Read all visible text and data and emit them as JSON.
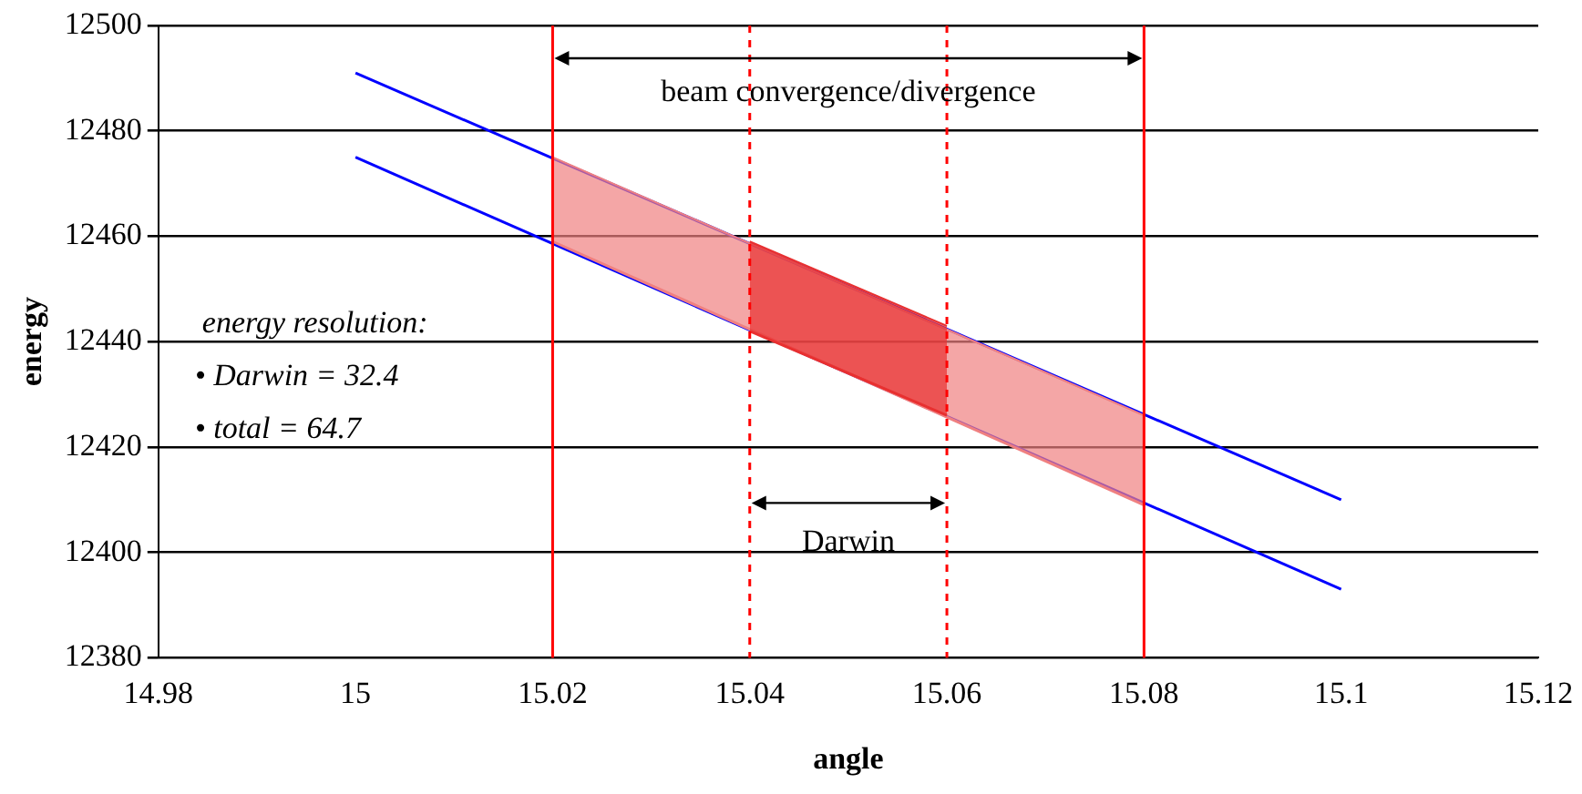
{
  "chart_data": {
    "type": "line",
    "xlabel": "angle",
    "ylabel": "energy",
    "xlim": [
      14.98,
      15.12
    ],
    "xticks": [
      14.98,
      15,
      15.02,
      15.04,
      15.06,
      15.08,
      15.1,
      15.12
    ],
    "ylim": [
      12380,
      12500
    ],
    "yticks": [
      12380,
      12400,
      12420,
      12440,
      12460,
      12480,
      12500
    ],
    "grid": "y",
    "legend": false,
    "marker": "none",
    "series": [
      {
        "type": "line",
        "color": "#0000ff",
        "x": [
          15,
          15.1
        ],
        "values": [
          12491,
          12410
        ]
      },
      {
        "type": "line",
        "color": "#0000ff",
        "x": [
          15,
          15.1
        ],
        "values": [
          12475,
          12393
        ]
      },
      {
        "type": "line",
        "color": "#f08080",
        "x": [
          15.02,
          15.08
        ],
        "values": [
          12459,
          12409
        ]
      },
      {
        "type": "area",
        "color": "#f08080",
        "x": [
          15.02,
          15.08
        ],
        "values": [
          12475,
          12426
        ]
      },
      {
        "type": "line",
        "color": "#e83030",
        "x": [
          15.04,
          15.06
        ],
        "values": [
          12442,
          12426
        ]
      },
      {
        "type": "area",
        "color": "#e83030",
        "x": [
          15.04,
          15.06
        ],
        "values": [
          12459,
          12443
        ]
      }
    ],
    "ref_lines": [
      {
        "axis": "x",
        "value": 15.02,
        "color": "#ff0000",
        "line_style": "solid"
      },
      {
        "axis": "x",
        "value": 15.04,
        "color": "#ff0000",
        "line_style": "dashed"
      },
      {
        "axis": "x",
        "value": 15.06,
        "color": "#ff0000",
        "line_style": "dashed"
      },
      {
        "axis": "x",
        "value": 15.08,
        "color": "#ff0000",
        "line_style": "solid"
      }
    ],
    "annotations": [
      "beam convergence/divergence",
      "Darwin",
      "energy resolution:",
      "• Darwin = 32.4",
      "• total = 64.7"
    ]
  }
}
